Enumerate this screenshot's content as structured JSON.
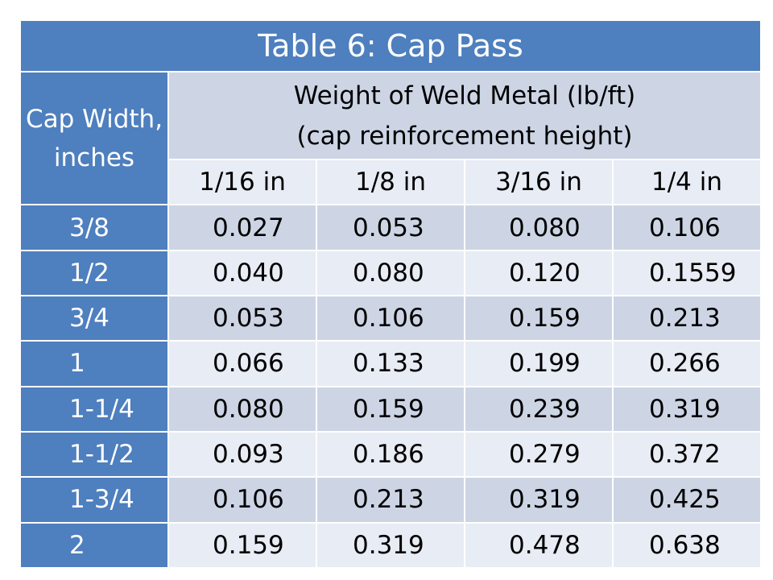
{
  "chart_data": {
    "type": "table",
    "title": "Table 6: Cap Pass",
    "row_header_label": "Cap Width, inches",
    "column_group_label": "Weight of Weld Metal (lb/ft) (cap reinforcement height)",
    "column_group_line1": "Weight of Weld Metal (lb/ft)",
    "column_group_line2": "(cap reinforcement height)",
    "row_header_line1": "Cap Width,",
    "row_header_line2": "inches",
    "columns": [
      "1/16 in",
      "1/8 in",
      "3/16 in",
      "1/4 in"
    ],
    "rows": [
      {
        "label": "3/8",
        "values": [
          "0.027",
          "0.053",
          "0.080",
          "0.106"
        ]
      },
      {
        "label": "1/2",
        "values": [
          "0.040",
          "0.080",
          "0.120",
          "0.1559"
        ]
      },
      {
        "label": "3/4",
        "values": [
          "0.053",
          "0.106",
          "0.159",
          "0.213"
        ]
      },
      {
        "label": "1",
        "values": [
          "0.066",
          "0.133",
          "0.199",
          "0.266"
        ]
      },
      {
        "label": "1-1/4",
        "values": [
          "0.080",
          "0.159",
          "0.239",
          "0.319"
        ]
      },
      {
        "label": "1-1/2",
        "values": [
          "0.093",
          "0.186",
          "0.279",
          "0.372"
        ]
      },
      {
        "label": "1-3/4",
        "values": [
          "0.106",
          "0.213",
          "0.319",
          "0.425"
        ]
      },
      {
        "label": "2",
        "values": [
          "0.159",
          "0.319",
          "0.478",
          "0.638"
        ]
      }
    ]
  },
  "colors": {
    "header_blue": "#4e7fbe",
    "band_dark": "#cdd5e5",
    "band_light": "#e8ecf4"
  }
}
